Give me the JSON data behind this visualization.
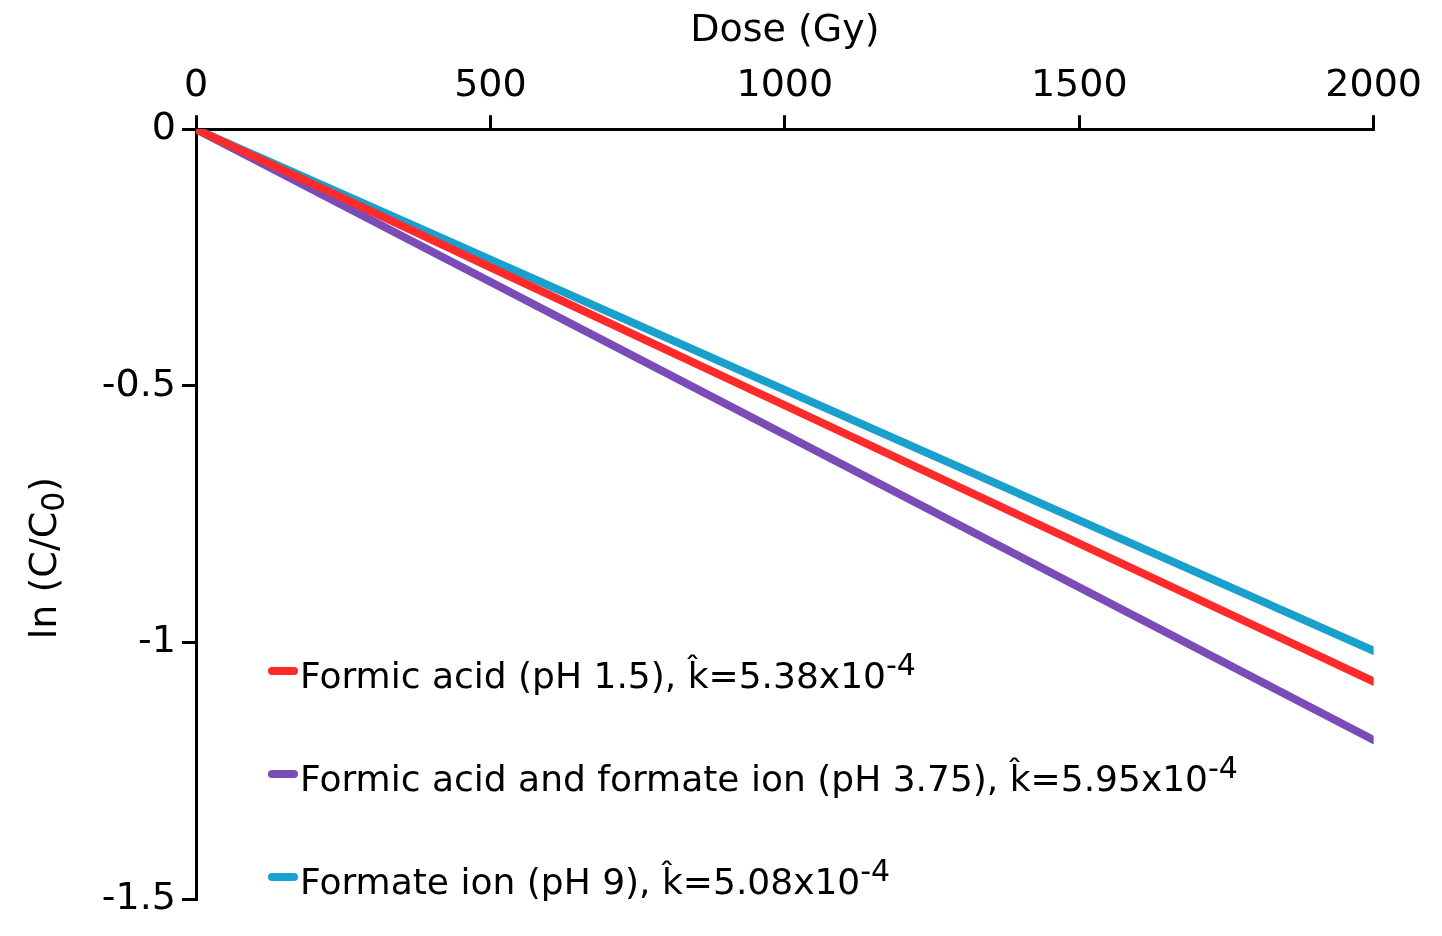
{
  "chart_data": {
    "type": "line",
    "xlabel": "Dose (Gy)",
    "ylabel": "ln (C/C$_{0}$)",
    "x": [
      0,
      2000
    ],
    "xlim": [
      0,
      2000
    ],
    "xticks": [
      0,
      500,
      1000,
      1500,
      2000
    ],
    "ylim": [
      -1.5,
      0
    ],
    "yticks": [
      0,
      -0.5,
      -1,
      -1.5
    ],
    "grid": false,
    "legend": "bottom left",
    "marker": "none",
    "line_style": "solid",
    "series": [
      {
        "name": "Formic acid (pH 1.5), k̂=5.38x10$^{-4}$",
        "color": "#ff2a2a",
        "values": [
          0,
          -1.076
        ]
      },
      {
        "name": "Formic acid and formate ion (pH 3.75), k̂=5.95x10$^{-4}$",
        "color": "#7a4cb8",
        "values": [
          0,
          -1.19
        ]
      },
      {
        "name": "Formate ion (pH 9), k̂=5.08x10$^{-4}$",
        "color": "#1aa0cc",
        "values": [
          0,
          -1.016
        ]
      }
    ]
  }
}
